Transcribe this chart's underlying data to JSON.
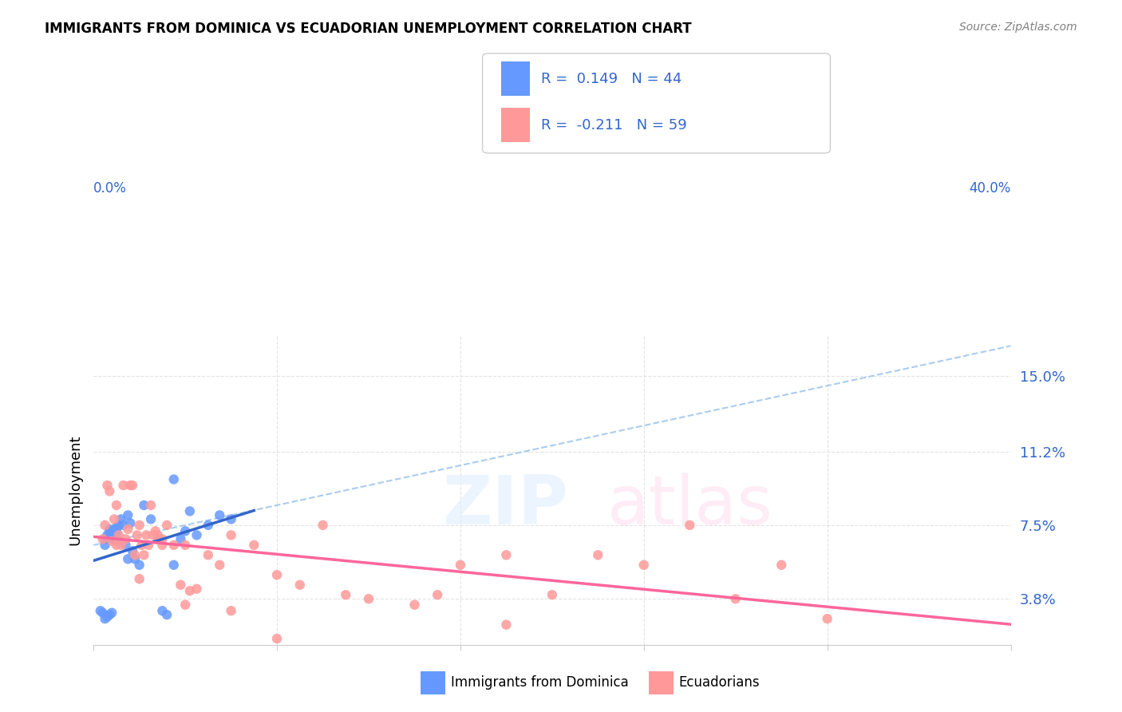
{
  "title": "IMMIGRANTS FROM DOMINICA VS ECUADORIAN UNEMPLOYMENT CORRELATION CHART",
  "source": "Source: ZipAtlas.com",
  "ylabel": "Unemployment",
  "ytick_values": [
    3.8,
    7.5,
    11.2,
    15.0
  ],
  "xlim": [
    0.0,
    40.0
  ],
  "ylim": [
    1.5,
    17.0
  ],
  "legend_r1": "0.149",
  "legend_n1": "44",
  "legend_r2": "-0.211",
  "legend_n2": "59",
  "color_blue": "#6699ff",
  "color_pink": "#ff9999",
  "color_blue_line": "#3366cc",
  "color_pink_line": "#ff6699",
  "color_dashed": "#aaccee",
  "blue_scatter_x": [
    0.3,
    0.4,
    0.5,
    0.5,
    0.6,
    0.6,
    0.7,
    0.7,
    0.8,
    0.8,
    0.9,
    0.9,
    1.0,
    1.0,
    1.0,
    1.1,
    1.1,
    1.2,
    1.3,
    1.4,
    1.5,
    1.5,
    1.6,
    1.7,
    1.8,
    2.0,
    2.2,
    2.5,
    2.8,
    3.0,
    3.2,
    3.5,
    3.8,
    4.0,
    4.2,
    4.5,
    5.0,
    5.5,
    6.0,
    0.5,
    0.6,
    0.7,
    0.8,
    3.5
  ],
  "blue_scatter_y": [
    3.2,
    3.1,
    6.8,
    6.5,
    6.8,
    7.0,
    7.2,
    7.3,
    6.9,
    7.1,
    6.8,
    7.2,
    7.3,
    7.1,
    7.4,
    6.7,
    7.5,
    7.8,
    7.5,
    6.5,
    5.8,
    8.0,
    7.6,
    6.2,
    5.8,
    5.5,
    8.5,
    7.8,
    6.8,
    3.2,
    3.0,
    5.5,
    6.8,
    7.2,
    8.2,
    7.0,
    7.5,
    8.0,
    7.8,
    2.8,
    2.9,
    3.0,
    3.1,
    9.8
  ],
  "pink_scatter_x": [
    0.4,
    0.5,
    0.6,
    0.7,
    0.8,
    0.9,
    1.0,
    1.0,
    1.1,
    1.2,
    1.3,
    1.4,
    1.5,
    1.6,
    1.7,
    1.8,
    1.9,
    2.0,
    2.1,
    2.2,
    2.3,
    2.4,
    2.5,
    2.6,
    2.7,
    2.8,
    3.0,
    3.0,
    3.2,
    3.5,
    3.8,
    4.0,
    4.2,
    4.5,
    5.0,
    5.5,
    6.0,
    7.0,
    8.0,
    9.0,
    10.0,
    11.0,
    12.0,
    14.0,
    16.0,
    18.0,
    20.0,
    22.0,
    24.0,
    26.0,
    28.0,
    30.0,
    32.0,
    15.0,
    18.0,
    2.0,
    4.0,
    6.0,
    8.0
  ],
  "pink_scatter_y": [
    6.8,
    7.5,
    9.5,
    9.2,
    6.7,
    7.8,
    8.5,
    6.5,
    7.0,
    6.5,
    9.5,
    6.8,
    7.3,
    9.5,
    9.5,
    6.0,
    7.0,
    7.5,
    6.5,
    6.0,
    7.0,
    6.5,
    8.5,
    7.0,
    7.2,
    7.0,
    6.5,
    6.8,
    7.5,
    6.5,
    4.5,
    6.5,
    4.2,
    4.3,
    6.0,
    5.5,
    7.0,
    6.5,
    5.0,
    4.5,
    7.5,
    4.0,
    3.8,
    3.5,
    5.5,
    6.0,
    4.0,
    6.0,
    5.5,
    7.5,
    3.8,
    5.5,
    2.8,
    4.0,
    2.5,
    4.8,
    3.5,
    3.2,
    1.8
  ],
  "background_color": "#ffffff",
  "grid_color": "#dddddd"
}
